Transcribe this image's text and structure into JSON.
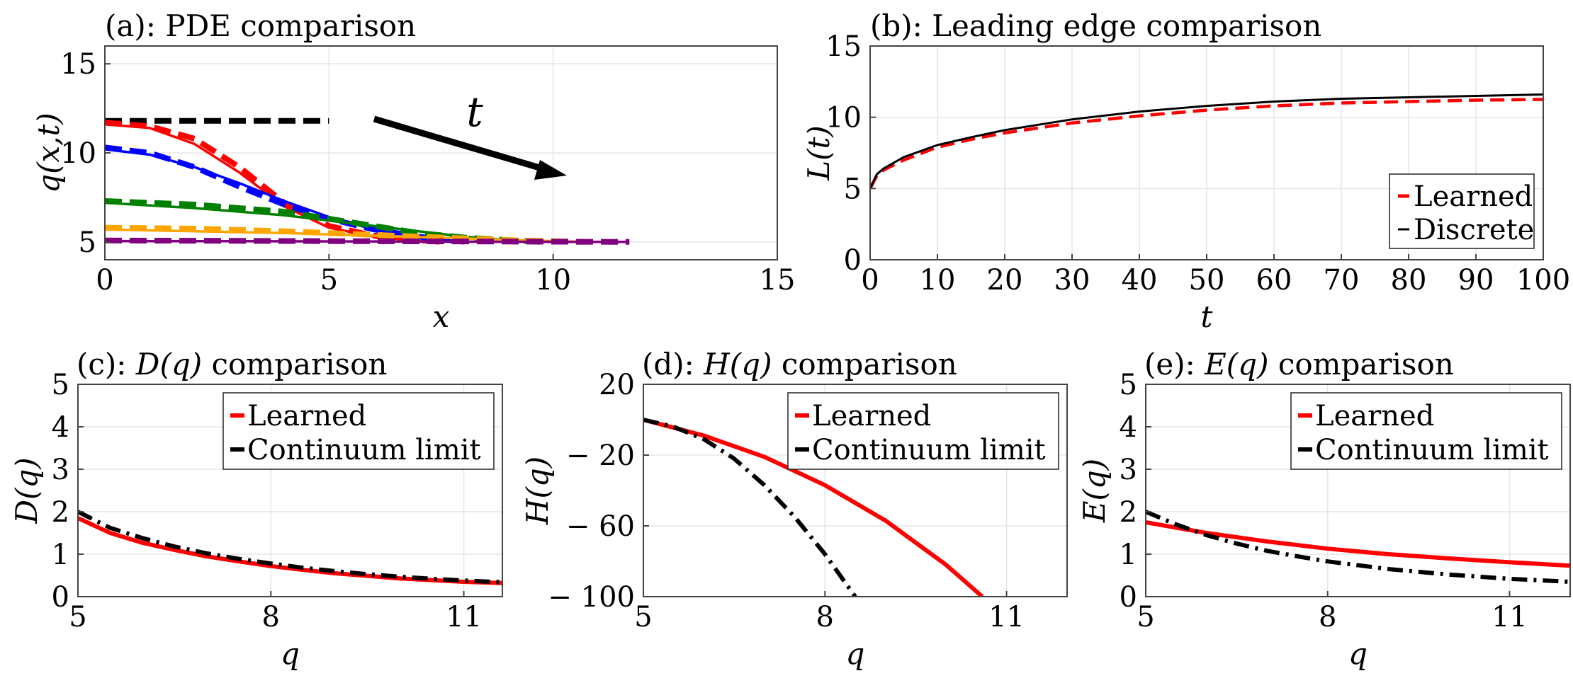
{
  "chart_data": [
    {
      "id": "a",
      "type": "line",
      "title": "(a): PDE comparison",
      "xlabel": "x",
      "ylabel": "q(x,t)",
      "xlim": [
        0,
        15
      ],
      "ylim": [
        4,
        16
      ],
      "xticks": [
        0,
        5,
        10,
        15
      ],
      "yticks": [
        5,
        10,
        15
      ],
      "annotation": "t",
      "grid": true,
      "series": [
        {
          "color": "#000000",
          "dashed_x": [
            0,
            0.5,
            1,
            1.5,
            2,
            2.5,
            3,
            3.5,
            4,
            4.5,
            5
          ],
          "dashed_y": [
            11.8,
            11.8,
            11.8,
            11.8,
            11.8,
            11.8,
            11.8,
            11.8,
            11.8,
            11.8,
            11.8
          ],
          "solid_x": [],
          "solid_y": []
        },
        {
          "color": "#ff0000",
          "solid_x": [
            0,
            1,
            2,
            3,
            4,
            5,
            6,
            7,
            7.5
          ],
          "solid_y": [
            11.6,
            11.4,
            10.5,
            8.9,
            7.0,
            5.8,
            5.3,
            5.05,
            5.0
          ],
          "dashed_x": [
            0,
            1,
            2,
            3,
            4,
            5,
            6,
            7,
            7.5
          ],
          "dashed_y": [
            11.7,
            11.5,
            10.8,
            9.2,
            7.2,
            5.9,
            5.35,
            5.1,
            5.0
          ]
        },
        {
          "color": "#0000ff",
          "solid_x": [
            0,
            1,
            2,
            3,
            4,
            5,
            6,
            7,
            8
          ],
          "solid_y": [
            10.2,
            9.9,
            9.2,
            8.3,
            7.3,
            6.4,
            5.7,
            5.2,
            5.0
          ],
          "dashed_x": [
            0,
            1,
            2,
            3,
            4,
            5,
            6,
            7,
            8
          ],
          "dashed_y": [
            10.3,
            10.0,
            9.2,
            8.1,
            7.1,
            6.3,
            5.7,
            5.3,
            5.0
          ]
        },
        {
          "color": "#008000",
          "solid_x": [
            0,
            2,
            4,
            5,
            6,
            7,
            8,
            9,
            9.7
          ],
          "solid_y": [
            7.2,
            6.9,
            6.5,
            6.2,
            5.9,
            5.6,
            5.3,
            5.1,
            5.0
          ],
          "dashed_x": [
            0,
            2,
            4,
            5,
            6,
            7,
            8,
            9,
            9.7
          ],
          "dashed_y": [
            7.3,
            7.1,
            6.7,
            6.3,
            5.9,
            5.5,
            5.25,
            5.1,
            5.0
          ]
        },
        {
          "color": "#ffa500",
          "solid_x": [
            0,
            2,
            4,
            6,
            8,
            9,
            10,
            10.7
          ],
          "solid_y": [
            5.7,
            5.6,
            5.5,
            5.35,
            5.2,
            5.1,
            5.05,
            5.0
          ],
          "dashed_x": [
            0,
            2,
            4,
            6,
            8,
            9,
            10,
            10.7
          ],
          "dashed_y": [
            5.8,
            5.75,
            5.6,
            5.4,
            5.2,
            5.1,
            5.05,
            5.0
          ]
        },
        {
          "color": "#800080",
          "solid_x": [
            0,
            3,
            6,
            9,
            11.7
          ],
          "solid_y": [
            5.05,
            5.04,
            5.03,
            5.01,
            5.0
          ],
          "dashed_x": [
            0,
            3,
            6,
            9,
            11.7
          ],
          "dashed_y": [
            5.08,
            5.06,
            5.04,
            5.02,
            5.0
          ]
        }
      ]
    },
    {
      "id": "b",
      "type": "line",
      "title": "(b): Leading edge comparison",
      "xlabel": "t",
      "ylabel": "L(t)",
      "xlim": [
        0,
        100
      ],
      "ylim": [
        0,
        15
      ],
      "xticks": [
        0,
        10,
        20,
        30,
        40,
        50,
        60,
        70,
        80,
        90,
        100
      ],
      "yticks": [
        0,
        5,
        10,
        15
      ],
      "grid": true,
      "legend_position": "bottom-right",
      "series": [
        {
          "name": "Learned",
          "color": "#ff0000",
          "style": "dashed",
          "x": [
            0,
            1,
            2,
            5,
            10,
            15,
            20,
            30,
            40,
            50,
            60,
            70,
            80,
            90,
            100
          ],
          "y": [
            5.0,
            5.9,
            6.3,
            7.0,
            7.9,
            8.45,
            8.9,
            9.6,
            10.1,
            10.5,
            10.8,
            11.0,
            11.1,
            11.2,
            11.25
          ]
        },
        {
          "name": "Discrete",
          "color": "#000000",
          "style": "solid",
          "x": [
            0,
            1,
            2,
            5,
            10,
            15,
            20,
            30,
            40,
            50,
            60,
            70,
            80,
            90,
            100
          ],
          "y": [
            5.0,
            6.0,
            6.4,
            7.2,
            8.05,
            8.6,
            9.1,
            9.85,
            10.4,
            10.8,
            11.1,
            11.3,
            11.4,
            11.5,
            11.6
          ]
        }
      ]
    },
    {
      "id": "c",
      "type": "line",
      "title_prefix": "(c): ",
      "title_math": "D(q)",
      "title_suffix": " comparison",
      "xlabel": "q",
      "ylabel": "D(q)",
      "xlim": [
        5,
        11.6
      ],
      "ylim": [
        0,
        5
      ],
      "xticks": [
        5,
        8,
        11
      ],
      "yticks": [
        0,
        1,
        2,
        3,
        4,
        5
      ],
      "ytick_labels": [
        "0",
        "1",
        "2",
        "3",
        "4",
        "5"
      ],
      "grid": true,
      "legend_position": "top-right",
      "series": [
        {
          "name": "Learned",
          "color": "#ff0000",
          "style": "solid",
          "x": [
            5,
            5.5,
            6,
            6.5,
            7,
            7.5,
            8,
            8.5,
            9,
            9.5,
            10,
            10.5,
            11,
            11.6
          ],
          "y": [
            1.85,
            1.5,
            1.27,
            1.1,
            0.95,
            0.83,
            0.72,
            0.63,
            0.55,
            0.49,
            0.43,
            0.39,
            0.35,
            0.32
          ]
        },
        {
          "name": "Continuum limit",
          "color": "#000000",
          "style": "dashdot",
          "x": [
            5,
            5.5,
            6,
            6.5,
            7,
            7.5,
            8,
            8.5,
            9,
            9.5,
            10,
            10.5,
            11,
            11.6
          ],
          "y": [
            2.0,
            1.62,
            1.38,
            1.18,
            1.02,
            0.89,
            0.78,
            0.68,
            0.6,
            0.53,
            0.47,
            0.42,
            0.38,
            0.34
          ]
        }
      ]
    },
    {
      "id": "d",
      "type": "line",
      "title_prefix": "(d): ",
      "title_math": "H(q)",
      "title_suffix": " comparison",
      "xlabel": "q",
      "ylabel": "H(q)",
      "xlim": [
        5,
        12
      ],
      "ylim": [
        -100,
        20
      ],
      "xticks": [
        5,
        8,
        11
      ],
      "yticks": [
        20,
        -20,
        -60,
        -100
      ],
      "ytick_labels": [
        "20",
        "− 20",
        "− 60",
        "− 100"
      ],
      "grid": true,
      "legend_position": "top-right",
      "series": [
        {
          "name": "Learned",
          "color": "#ff0000",
          "style": "solid",
          "x": [
            5,
            6,
            7,
            8,
            9,
            10,
            10.6
          ],
          "y": [
            0,
            -9,
            -21,
            -37,
            -57,
            -82,
            -100
          ]
        },
        {
          "name": "Continuum limit",
          "color": "#000000",
          "style": "dashdot",
          "x": [
            5,
            5.5,
            6,
            6.5,
            7,
            7.5,
            8,
            8.5
          ],
          "y": [
            0,
            -4,
            -11,
            -22,
            -37,
            -55,
            -76,
            -100
          ]
        }
      ]
    },
    {
      "id": "e",
      "type": "line",
      "title_prefix": "(e): ",
      "title_math": "E(q)",
      "title_suffix": " comparison",
      "xlabel": "q",
      "ylabel": "E(q)",
      "xlim": [
        5,
        12
      ],
      "ylim": [
        0,
        5
      ],
      "xticks": [
        5,
        8,
        11
      ],
      "yticks": [
        0,
        1,
        2,
        3,
        4,
        5
      ],
      "ytick_labels": [
        "0",
        "1",
        "2",
        "3",
        "4",
        "5"
      ],
      "grid": true,
      "legend_position": "top-right",
      "series": [
        {
          "name": "Learned",
          "color": "#ff0000",
          "style": "solid",
          "x": [
            5,
            6,
            7,
            8,
            9,
            10,
            11,
            12
          ],
          "y": [
            1.75,
            1.5,
            1.3,
            1.13,
            1.0,
            0.9,
            0.81,
            0.73
          ]
        },
        {
          "name": "Continuum limit",
          "color": "#000000",
          "style": "dashdot",
          "x": [
            5,
            5.5,
            6,
            6.5,
            7,
            7.5,
            8,
            9,
            10,
            11,
            12
          ],
          "y": [
            2.0,
            1.7,
            1.45,
            1.25,
            1.08,
            0.95,
            0.83,
            0.65,
            0.52,
            0.42,
            0.35
          ]
        }
      ]
    }
  ]
}
